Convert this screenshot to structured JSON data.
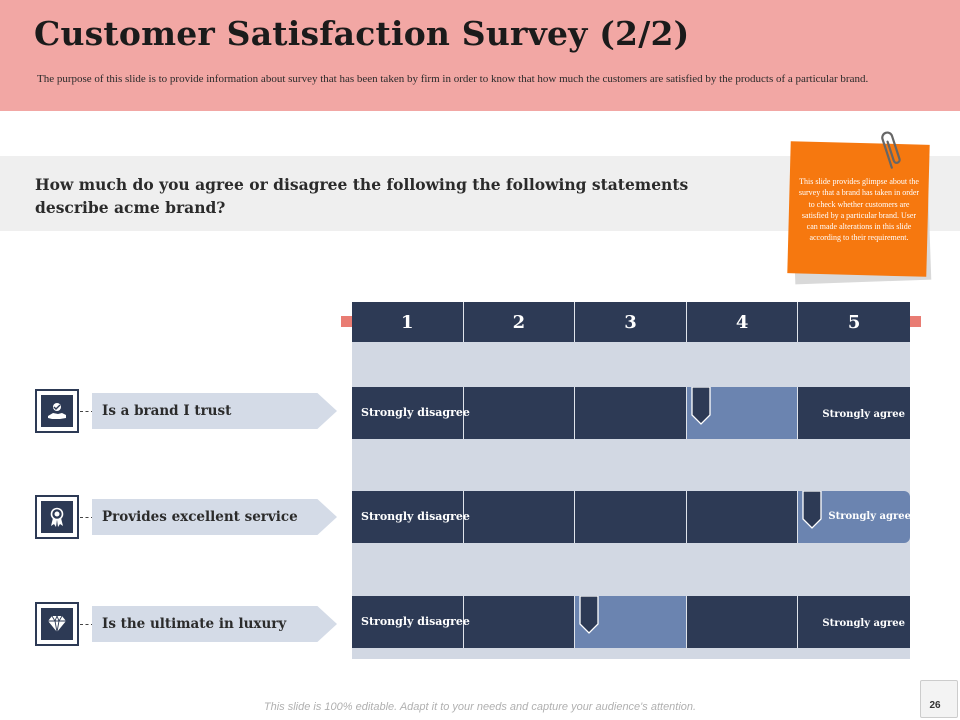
{
  "slide": {
    "title": "Customer Satisfaction Survey (2/2)",
    "subtitle": "The purpose of this slide is to provide information about survey that has been taken by firm in order to know that how much the customers are satisfied by the products of a particular brand.",
    "question": "How much do you agree or disagree the following the following statements describe acme brand?",
    "note": "This slide provides glimpse about the survey that a brand has taken in order to check whether customers are satisfied by a particular brand. User can made alterations in this slide according to their requirement.",
    "footer": "This slide is 100% editable. Adapt it to your needs and capture your audience's attention.",
    "page_number": "26"
  },
  "scale": {
    "labels": [
      "1",
      "2",
      "3",
      "4",
      "5"
    ],
    "low_label": "Strongly disagree",
    "high_label": "Strongly agree"
  },
  "statements": [
    {
      "label": "Is a brand I trust",
      "icon": "hand-trust-icon",
      "rating": 4
    },
    {
      "label": "Provides excellent service",
      "icon": "award-ribbon-icon",
      "rating": 5
    },
    {
      "label": "Is the ultimate in luxury",
      "icon": "diamond-icon",
      "rating": 3
    }
  ],
  "colors": {
    "header_bg": "#f2a7a4",
    "dark_navy": "#2d3a55",
    "highlight_blue": "#6b84b0",
    "light_gray_blue": "#d2d8e3",
    "note_orange": "#f6780f",
    "accent_marker": "#e97c73"
  }
}
